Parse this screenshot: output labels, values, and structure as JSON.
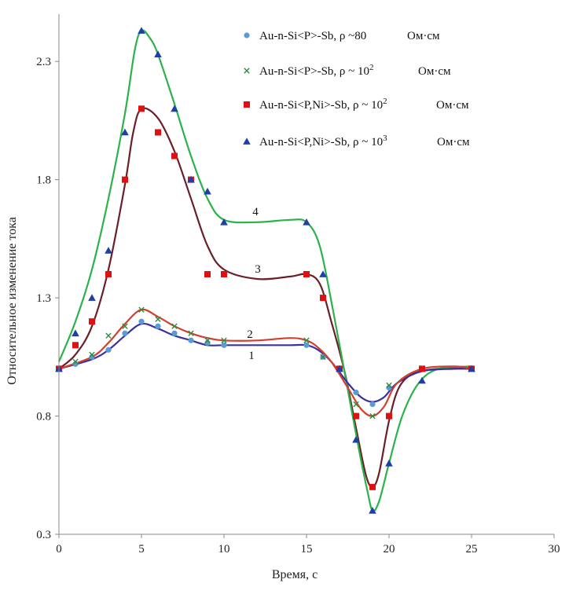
{
  "chart_data": {
    "type": "scatter",
    "title": "",
    "xlabel": "Время,  с",
    "ylabel": "Относительное изменение тока",
    "xlim": [
      0,
      30
    ],
    "ylim": [
      0.3,
      2.5
    ],
    "xticks": [
      0,
      5,
      10,
      15,
      20,
      25,
      30
    ],
    "yticks": [
      0.3,
      0.8,
      1.3,
      1.8,
      2.3
    ],
    "xtick_labels": [
      "0",
      "5",
      "10",
      "15",
      "20",
      "25",
      "30"
    ],
    "ytick_labels": [
      "0.3",
      "0.8",
      "1.3",
      "1.8",
      "2.3"
    ],
    "grid": false,
    "legend_position": "top-right",
    "series": [
      {
        "name": "Au-n-Si<P>-Sb,  ρ ~80   Ом·см",
        "name_main": "Au-n-Si<P>-Sb,  ρ ~80",
        "name_sup": "",
        "name_unit": "Ом·см",
        "marker": "circle",
        "marker_color": "#5b9bd5",
        "line_color": "#3a30a0",
        "curve_label": "1",
        "points": [
          [
            0,
            1.0
          ],
          [
            1,
            1.02
          ],
          [
            2,
            1.05
          ],
          [
            3,
            1.08
          ],
          [
            4,
            1.15
          ],
          [
            5,
            1.2
          ],
          [
            6,
            1.18
          ],
          [
            7,
            1.15
          ],
          [
            8,
            1.12
          ],
          [
            9,
            1.11
          ],
          [
            10,
            1.1
          ],
          [
            15,
            1.1
          ],
          [
            16,
            1.05
          ],
          [
            17,
            1.0
          ],
          [
            18,
            0.9
          ],
          [
            19,
            0.85
          ],
          [
            20,
            0.92
          ],
          [
            22,
            1.0
          ],
          [
            25,
            1.0
          ]
        ],
        "curve": [
          [
            0,
            1.0
          ],
          [
            2,
            1.04
          ],
          [
            3,
            1.08
          ],
          [
            4,
            1.14
          ],
          [
            5,
            1.19
          ],
          [
            6,
            1.17
          ],
          [
            7,
            1.14
          ],
          [
            8,
            1.12
          ],
          [
            9,
            1.1
          ],
          [
            10,
            1.1
          ],
          [
            12,
            1.1
          ],
          [
            14,
            1.1
          ],
          [
            15,
            1.1
          ],
          [
            15.7,
            1.08
          ],
          [
            16.5,
            1.03
          ],
          [
            17.5,
            0.94
          ],
          [
            18.3,
            0.88
          ],
          [
            19,
            0.86
          ],
          [
            19.7,
            0.88
          ],
          [
            20.5,
            0.94
          ],
          [
            22,
            0.99
          ],
          [
            24,
            1.0
          ],
          [
            25,
            1.0
          ]
        ]
      },
      {
        "name": "Au-n-Si<P>-Sb,  ρ ~ 10² Ом·см",
        "name_main": "Au-n-Si<P>-Sb,  ρ ~ 10",
        "name_sup": "2",
        "name_unit": "Ом·см",
        "marker": "cross",
        "marker_color": "#2e8b3d",
        "line_color": "#d04030",
        "curve_label": "2",
        "points": [
          [
            0,
            1.0
          ],
          [
            1,
            1.03
          ],
          [
            2,
            1.06
          ],
          [
            3,
            1.14
          ],
          [
            4,
            1.18
          ],
          [
            5,
            1.25
          ],
          [
            6,
            1.21
          ],
          [
            7,
            1.18
          ],
          [
            8,
            1.15
          ],
          [
            9,
            1.12
          ],
          [
            10,
            1.12
          ],
          [
            15,
            1.12
          ],
          [
            16,
            1.05
          ],
          [
            17,
            1.0
          ],
          [
            18,
            0.85
          ],
          [
            19,
            0.8
          ],
          [
            20,
            0.93
          ],
          [
            22,
            1.0
          ],
          [
            25,
            1.0
          ]
        ],
        "curve": [
          [
            0,
            1.0
          ],
          [
            2,
            1.05
          ],
          [
            3,
            1.11
          ],
          [
            4,
            1.19
          ],
          [
            5,
            1.25
          ],
          [
            6,
            1.22
          ],
          [
            7,
            1.18
          ],
          [
            8,
            1.15
          ],
          [
            9,
            1.13
          ],
          [
            10,
            1.12
          ],
          [
            12,
            1.12
          ],
          [
            14,
            1.13
          ],
          [
            15,
            1.12
          ],
          [
            15.7,
            1.09
          ],
          [
            16.5,
            1.03
          ],
          [
            17.5,
            0.92
          ],
          [
            18.3,
            0.83
          ],
          [
            19,
            0.8
          ],
          [
            19.7,
            0.84
          ],
          [
            20.5,
            0.94
          ],
          [
            22,
            1.0
          ],
          [
            24,
            1.01
          ],
          [
            25,
            1.0
          ]
        ]
      },
      {
        "name": "Au-n-Si<P,Ni>-Sb,  ρ ~ 10² Ом·см",
        "name_main": "Au-n-Si<P,Ni>-Sb,  ρ ~ 10",
        "name_sup": "2",
        "name_unit": "Ом·см",
        "marker": "square",
        "marker_color": "#e01010",
        "line_color": "#6a1f2a",
        "curve_label": "3",
        "points": [
          [
            0,
            1.0
          ],
          [
            1,
            1.1
          ],
          [
            2,
            1.2
          ],
          [
            3,
            1.4
          ],
          [
            4,
            1.8
          ],
          [
            5,
            2.1
          ],
          [
            6,
            2.0
          ],
          [
            7,
            1.9
          ],
          [
            8,
            1.8
          ],
          [
            9,
            1.4
          ],
          [
            10,
            1.4
          ],
          [
            15,
            1.4
          ],
          [
            16,
            1.3
          ],
          [
            17,
            1.0
          ],
          [
            18,
            0.8
          ],
          [
            19,
            0.5
          ],
          [
            20,
            0.8
          ],
          [
            22,
            1.0
          ],
          [
            25,
            1.0
          ]
        ],
        "curve": [
          [
            0,
            1.0
          ],
          [
            1,
            1.06
          ],
          [
            2,
            1.18
          ],
          [
            3,
            1.42
          ],
          [
            4,
            1.78
          ],
          [
            4.5,
            2.0
          ],
          [
            5,
            2.1
          ],
          [
            6,
            2.06
          ],
          [
            7,
            1.92
          ],
          [
            8,
            1.72
          ],
          [
            9,
            1.52
          ],
          [
            10,
            1.42
          ],
          [
            12,
            1.38
          ],
          [
            14,
            1.39
          ],
          [
            15,
            1.4
          ],
          [
            15.8,
            1.36
          ],
          [
            16.5,
            1.2
          ],
          [
            17.3,
            0.99
          ],
          [
            18,
            0.75
          ],
          [
            18.6,
            0.55
          ],
          [
            19,
            0.5
          ],
          [
            19.4,
            0.56
          ],
          [
            20,
            0.78
          ],
          [
            20.6,
            0.92
          ],
          [
            21.5,
            0.98
          ],
          [
            23,
            1.0
          ],
          [
            25,
            1.0
          ]
        ]
      },
      {
        "name": "Au-n-Si<P,Ni>-Sb,  ρ ~ 10³ Ом·см",
        "name_main": "Au-n-Si<P,Ni>-Sb,  ρ ~ 10",
        "name_sup": "3",
        "name_unit": "Ом·см",
        "marker": "triangle",
        "marker_color": "#1f3fa8",
        "line_color": "#2bb24a",
        "curve_label": "4",
        "points": [
          [
            0,
            1.0
          ],
          [
            1,
            1.15
          ],
          [
            2,
            1.3
          ],
          [
            3,
            1.5
          ],
          [
            4,
            2.0
          ],
          [
            5,
            2.43
          ],
          [
            6,
            2.33
          ],
          [
            7,
            2.1
          ],
          [
            8,
            1.8
          ],
          [
            9,
            1.75
          ],
          [
            10,
            1.62
          ],
          [
            15,
            1.62
          ],
          [
            16,
            1.4
          ],
          [
            17,
            1.0
          ],
          [
            18,
            0.7
          ],
          [
            19,
            0.4
          ],
          [
            20,
            0.6
          ],
          [
            22,
            0.95
          ],
          [
            25,
            1.0
          ]
        ],
        "curve": [
          [
            0,
            1.03
          ],
          [
            1,
            1.2
          ],
          [
            2,
            1.42
          ],
          [
            3,
            1.72
          ],
          [
            4,
            2.08
          ],
          [
            4.6,
            2.35
          ],
          [
            5,
            2.43
          ],
          [
            5.5,
            2.4
          ],
          [
            6,
            2.33
          ],
          [
            7,
            2.12
          ],
          [
            8,
            1.9
          ],
          [
            9,
            1.72
          ],
          [
            10,
            1.63
          ],
          [
            12,
            1.62
          ],
          [
            14,
            1.63
          ],
          [
            15,
            1.62
          ],
          [
            15.8,
            1.52
          ],
          [
            16.6,
            1.25
          ],
          [
            17.4,
            0.95
          ],
          [
            18.2,
            0.65
          ],
          [
            18.7,
            0.48
          ],
          [
            19,
            0.4
          ],
          [
            19.4,
            0.44
          ],
          [
            20,
            0.6
          ],
          [
            20.8,
            0.8
          ],
          [
            21.8,
            0.94
          ],
          [
            23,
            1.0
          ],
          [
            25,
            1.01
          ]
        ]
      }
    ]
  }
}
